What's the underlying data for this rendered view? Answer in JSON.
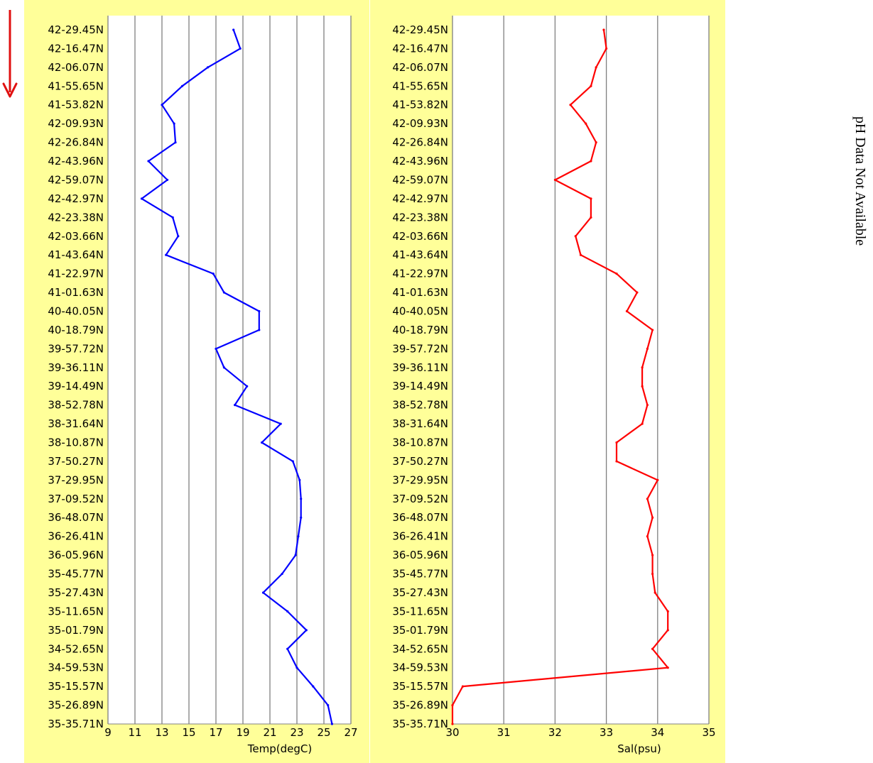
{
  "side_note": "pH Data Not Available",
  "colors": {
    "panel_background": "#FFFF99",
    "plot_background": "#FFFFFF",
    "gridline": "#808080",
    "arrow": "#E01010"
  },
  "arrow_direction": "down",
  "chart_data": [
    {
      "type": "line",
      "title": "",
      "xlabel": "Temp(degC)",
      "ylabel": "",
      "xlim": [
        9,
        27
      ],
      "xticks": [
        9,
        11,
        13,
        15,
        17,
        19,
        21,
        23,
        25,
        27
      ],
      "grid": "vertical",
      "y_categories": [
        "42-29.45N",
        "42-16.47N",
        "42-06.07N",
        "41-55.65N",
        "41-53.82N",
        "42-09.93N",
        "42-26.84N",
        "42-43.96N",
        "42-59.07N",
        "42-42.97N",
        "42-23.38N",
        "42-03.66N",
        "41-43.64N",
        "41-22.97N",
        "41-01.63N",
        "40-40.05N",
        "40-18.79N",
        "39-57.72N",
        "39-36.11N",
        "39-14.49N",
        "38-52.78N",
        "38-31.64N",
        "38-10.87N",
        "37-50.27N",
        "37-29.95N",
        "37-09.52N",
        "36-48.07N",
        "36-26.41N",
        "36-05.96N",
        "35-45.77N",
        "35-27.43N",
        "35-11.65N",
        "35-01.79N",
        "34-52.65N",
        "34-59.53N",
        "35-15.57N",
        "35-26.89N",
        "35-35.71N"
      ],
      "series": [
        {
          "color": "#0000FF",
          "values": [
            18.3,
            18.8,
            16.4,
            14.5,
            13.0,
            13.9,
            14.0,
            12.0,
            13.4,
            11.5,
            13.8,
            14.2,
            13.3,
            16.8,
            17.6,
            20.2,
            20.2,
            17.0,
            17.6,
            19.3,
            18.4,
            21.8,
            20.4,
            22.7,
            23.2,
            23.3,
            23.3,
            23.1,
            22.9,
            21.9,
            20.5,
            22.3,
            23.7,
            22.3,
            23.0,
            24.2,
            25.3,
            25.6
          ]
        }
      ]
    },
    {
      "type": "line",
      "title": "",
      "xlabel": "Sal(psu)",
      "ylabel": "",
      "xlim": [
        30,
        35
      ],
      "xticks": [
        30,
        31,
        32,
        33,
        34,
        35
      ],
      "grid": "vertical",
      "y_categories": [
        "42-29.45N",
        "42-16.47N",
        "42-06.07N",
        "41-55.65N",
        "41-53.82N",
        "42-09.93N",
        "42-26.84N",
        "42-43.96N",
        "42-59.07N",
        "42-42.97N",
        "42-23.38N",
        "42-03.66N",
        "41-43.64N",
        "41-22.97N",
        "41-01.63N",
        "40-40.05N",
        "40-18.79N",
        "39-57.72N",
        "39-36.11N",
        "39-14.49N",
        "38-52.78N",
        "38-31.64N",
        "38-10.87N",
        "37-50.27N",
        "37-29.95N",
        "37-09.52N",
        "36-48.07N",
        "36-26.41N",
        "36-05.96N",
        "35-45.77N",
        "35-27.43N",
        "35-11.65N",
        "35-01.79N",
        "34-52.65N",
        "34-59.53N",
        "35-15.57N",
        "35-26.89N",
        "35-35.71N"
      ],
      "series": [
        {
          "color": "#FF0000",
          "values": [
            32.95,
            33.0,
            32.8,
            32.7,
            32.3,
            32.6,
            32.8,
            32.7,
            32.0,
            32.7,
            32.7,
            32.4,
            32.5,
            33.2,
            33.6,
            33.4,
            33.9,
            33.8,
            33.7,
            33.7,
            33.8,
            33.7,
            33.2,
            33.2,
            34.0,
            33.8,
            33.9,
            33.8,
            33.9,
            33.9,
            33.95,
            34.2,
            34.2,
            33.9,
            34.2,
            30.2,
            30.0,
            30.0
          ]
        }
      ]
    }
  ]
}
